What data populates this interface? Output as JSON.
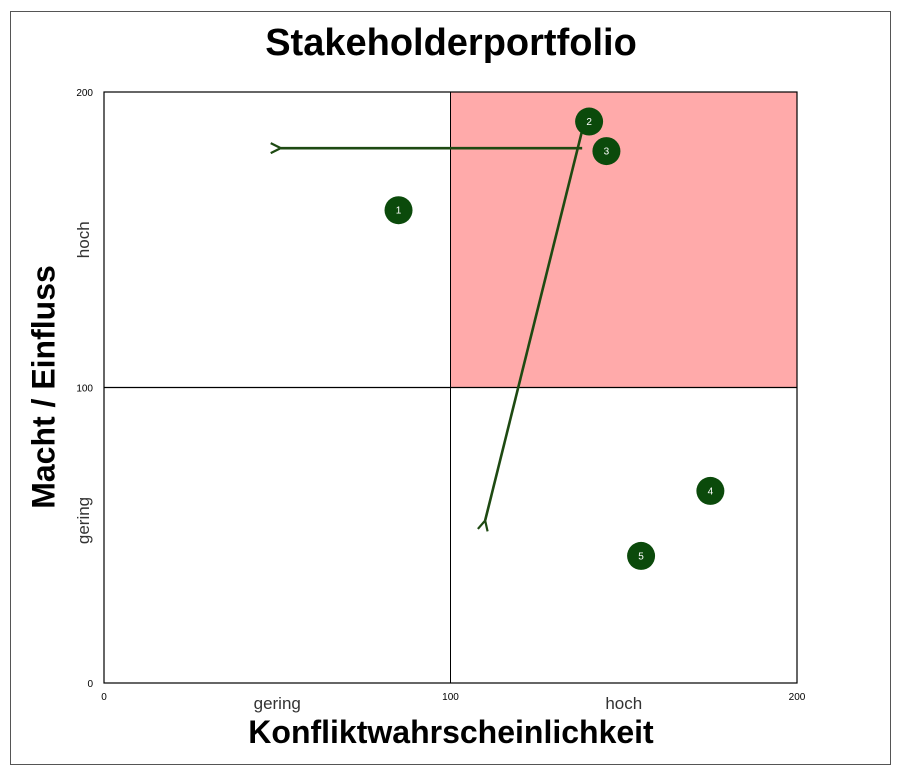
{
  "chart_data": {
    "type": "scatter",
    "title": "Stakeholderportfolio",
    "xlabel": "Konfliktwahrscheinlichkeit",
    "ylabel": "Macht / Einfluss",
    "xlim": [
      0,
      200
    ],
    "ylim": [
      0,
      200
    ],
    "x_ticks": [
      "0",
      "100",
      "200"
    ],
    "y_ticks": [
      "0",
      "100",
      "200"
    ],
    "x_category_labels": [
      "gering",
      "hoch"
    ],
    "y_category_labels": [
      "gering",
      "hoch"
    ],
    "highlight_quadrant": {
      "x": [
        100,
        200
      ],
      "y": [
        100,
        200
      ],
      "color": "#ffaaaa"
    },
    "divider_lines": {
      "x": 100,
      "y": 100
    },
    "point_color": "#0b4a0b",
    "arrow_color": "#1e4a12",
    "points": [
      {
        "label": "1",
        "x": 85,
        "y": 160
      },
      {
        "label": "2",
        "x": 140,
        "y": 190
      },
      {
        "label": "3",
        "x": 145,
        "y": 180
      },
      {
        "label": "4",
        "x": 175,
        "y": 65
      },
      {
        "label": "5",
        "x": 155,
        "y": 43
      }
    ],
    "arrows": [
      {
        "from": [
          138,
          181
        ],
        "to": [
          51,
          181
        ]
      },
      {
        "from": [
          138,
          187
        ],
        "to": [
          110,
          55
        ]
      }
    ]
  }
}
